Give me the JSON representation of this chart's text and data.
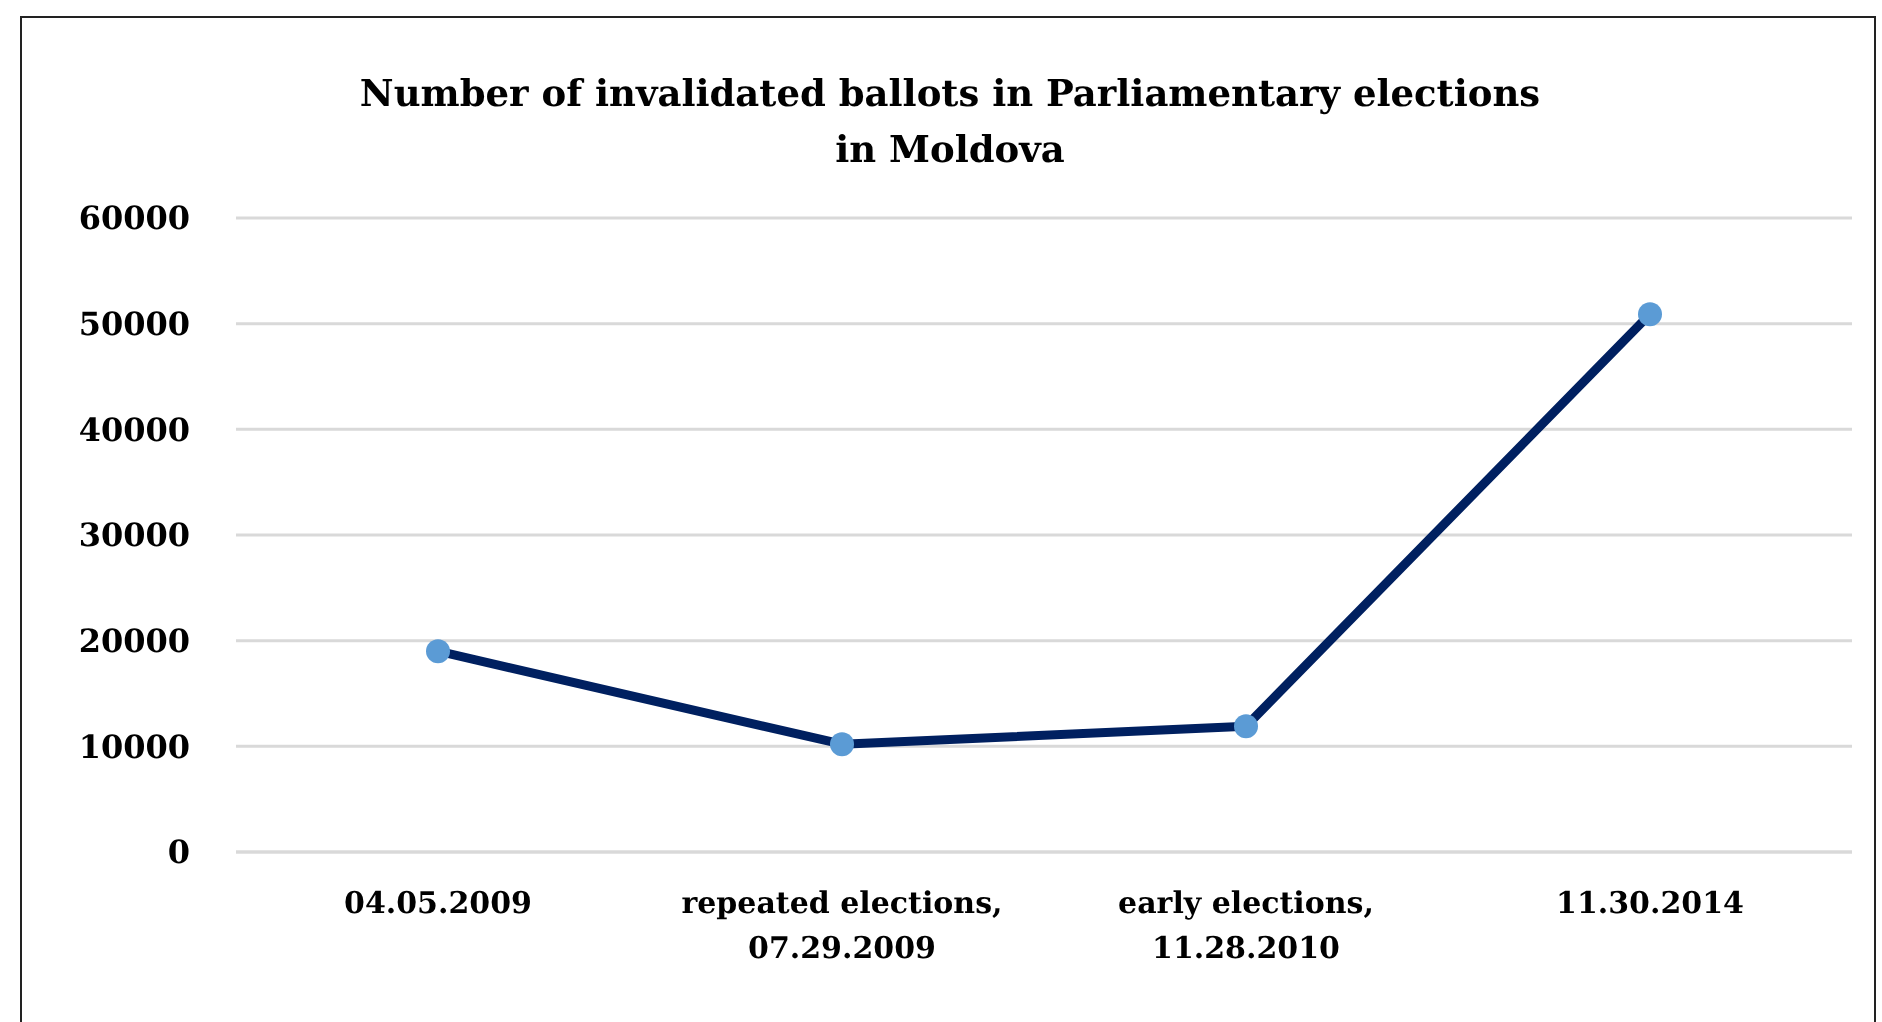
{
  "chart_data": {
    "type": "line",
    "title": "Number of invalidated ballots in Parliamentary elections in Moldova",
    "categories": [
      "04.05.2009",
      "repeated elections, 07.29.2009",
      "early elections, 11.28.2010",
      "11.30.2014"
    ],
    "series": [
      {
        "color": "#002060",
        "colors": [
          "#5b9bd5",
          "#5b9bd5",
          "#5b9bd5",
          "#5b9bd5"
        ],
        "values": [
          19000,
          10200,
          11900,
          50900
        ]
      }
    ],
    "ylim": [
      0,
      60000
    ],
    "yticks": [
      0,
      10000,
      20000,
      30000,
      40000,
      50000,
      60000
    ],
    "grid": "y",
    "marker": "circle"
  }
}
